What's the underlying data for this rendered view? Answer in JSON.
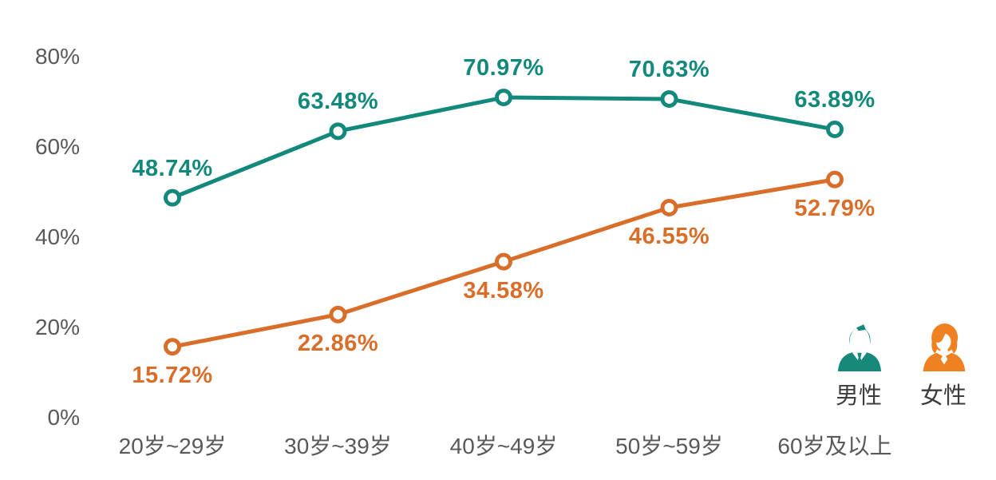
{
  "chart_data": {
    "type": "line",
    "categories": [
      "20岁~29岁",
      "30岁~39岁",
      "40岁~49岁",
      "50岁~59岁",
      "60岁及以上"
    ],
    "series": [
      {
        "name": "男性",
        "slug": "male",
        "color": "#12897b",
        "values": [
          48.74,
          63.48,
          70.97,
          70.63,
          63.89
        ],
        "value_labels": [
          "48.74%",
          "63.48%",
          "70.97%",
          "70.63%",
          "63.89%"
        ],
        "label_position": "above"
      },
      {
        "name": "女性",
        "slug": "female",
        "color": "#d96e2b",
        "values": [
          15.72,
          22.86,
          34.58,
          46.55,
          52.79
        ],
        "value_labels": [
          "15.72%",
          "22.86%",
          "34.58%",
          "46.55%",
          "52.79%"
        ],
        "label_position": "below"
      }
    ],
    "y_ticks": [
      0,
      20,
      40,
      60,
      80
    ],
    "y_tick_labels": [
      "0%",
      "20%",
      "40%",
      "60%",
      "80%"
    ],
    "ylim": [
      0,
      80
    ],
    "grid": false,
    "legend_position": "bottom-right",
    "value_suffix": "%",
    "title": "",
    "xlabel": "",
    "ylabel": ""
  },
  "legend": {
    "items": [
      {
        "label": "男性",
        "icon": "male-person-icon",
        "icon_color": "#17897b"
      },
      {
        "label": "女性",
        "icon": "female-person-icon",
        "icon_color": "#f08122"
      }
    ]
  },
  "colors": {
    "background": "#ffffff",
    "axis_text": "#595959",
    "legend_text": "#3d3d3d",
    "male_series": "#12897b",
    "female_series": "#d96e2b"
  }
}
